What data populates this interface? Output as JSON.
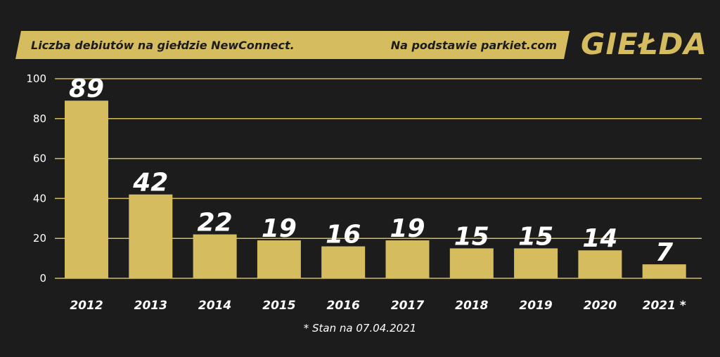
{
  "header": {
    "title": "Liczba debiutów na giełdzie NewConnect.",
    "source": "Na podstawie parkiet.com",
    "brand": "GIEŁDA"
  },
  "footnote": "* Stan na 07.04.2021",
  "colors": {
    "background": "#1c1c1c",
    "accent": "#d4bc5f",
    "text": "#ffffff"
  },
  "chart_data": {
    "type": "bar",
    "categories": [
      "2012",
      "2013",
      "2014",
      "2015",
      "2016",
      "2017",
      "2018",
      "2019",
      "2020",
      "2021 *"
    ],
    "values": [
      89,
      42,
      22,
      19,
      16,
      19,
      15,
      15,
      14,
      7
    ],
    "title": "Liczba debiutów na giełdzie NewConnect.",
    "xlabel": "",
    "ylabel": "",
    "ylim": [
      0,
      100
    ],
    "yticks": [
      0,
      20,
      40,
      60,
      80,
      100
    ],
    "grid": true,
    "legend": "none"
  }
}
